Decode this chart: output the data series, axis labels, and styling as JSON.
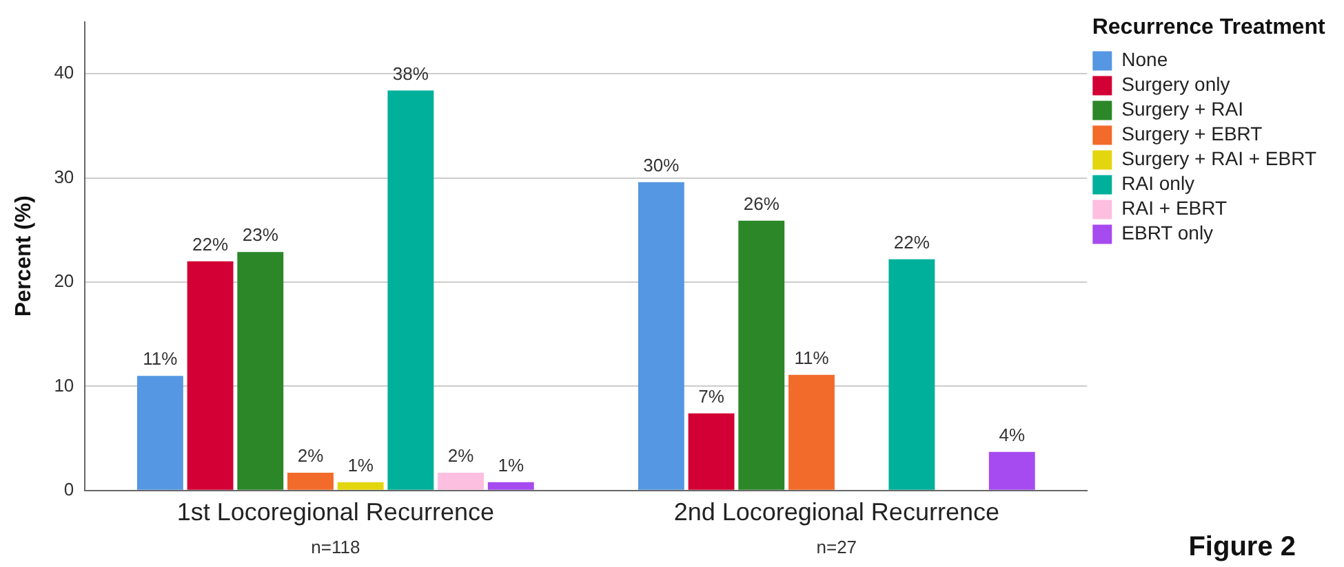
{
  "chart_data": {
    "type": "bar",
    "ylabel": "Percent (%)",
    "legend_title": "Recurrence Treatment",
    "legend": "right",
    "grid": "y",
    "categories": [
      "1st Locoregional Recurrence",
      "2nd Locoregional Recurrence"
    ],
    "ylim": [
      0,
      45
    ],
    "yticks": [
      0,
      10,
      20,
      30,
      40
    ],
    "series": [
      {
        "name": "None",
        "color": "#5597e2",
        "values": [
          11.0,
          29.6
        ],
        "value_labels": [
          "11%",
          "30%"
        ]
      },
      {
        "name": "Surgery only",
        "color": "#d20034",
        "values": [
          22.0,
          7.4
        ],
        "value_labels": [
          "22%",
          "7%"
        ]
      },
      {
        "name": "Surgery + RAI",
        "color": "#2b8728",
        "values": [
          22.9,
          25.9
        ],
        "value_labels": [
          "23%",
          "26%"
        ]
      },
      {
        "name": "Surgery + EBRT",
        "color": "#f26b2b",
        "values": [
          1.7,
          11.1
        ],
        "value_labels": [
          "2%",
          "11%"
        ]
      },
      {
        "name": "Surgery + RAI + EBRT",
        "color": "#e3d60e",
        "values": [
          0.8,
          null
        ],
        "value_labels": [
          "1%",
          null
        ]
      },
      {
        "name": "RAI only",
        "color": "#00b09b",
        "values": [
          38.4,
          22.2
        ],
        "value_labels": [
          "38%",
          "22%"
        ]
      },
      {
        "name": "RAI + EBRT",
        "color": "#fdbfdf",
        "values": [
          1.7,
          null
        ],
        "value_labels": [
          "2%",
          null
        ]
      },
      {
        "name": "EBRT only",
        "color": "#a64bef",
        "values": [
          0.8,
          3.7
        ],
        "value_labels": [
          "1%",
          "4%"
        ]
      }
    ],
    "annotations": [
      "n=118",
      "n=27",
      "Figure 2"
    ]
  }
}
